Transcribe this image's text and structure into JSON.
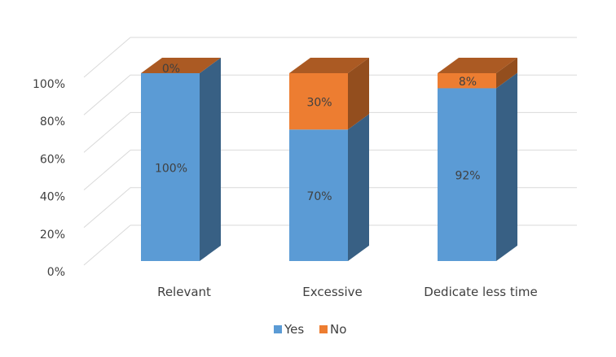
{
  "chart_data": {
    "type": "bar",
    "stacked": true,
    "percent_stacked": true,
    "three_d": true,
    "categories": [
      "Relevant",
      "Excessive",
      "Dedicate less time"
    ],
    "series": [
      {
        "name": "Yes",
        "values": [
          100,
          70,
          92
        ],
        "labels": [
          "100%",
          "70%",
          "92%"
        ],
        "color": "#5B9BD5"
      },
      {
        "name": "No",
        "values": [
          0,
          30,
          8
        ],
        "labels": [
          "0%",
          "30%",
          "8%"
        ],
        "color": "#ED7D31"
      }
    ],
    "ylim": [
      0,
      100
    ],
    "y_ticks": [
      "0%",
      "20%",
      "40%",
      "60%",
      "80%",
      "100%"
    ],
    "grid": true,
    "legend": "bottom",
    "title": "",
    "xlabel": "",
    "ylabel": ""
  }
}
